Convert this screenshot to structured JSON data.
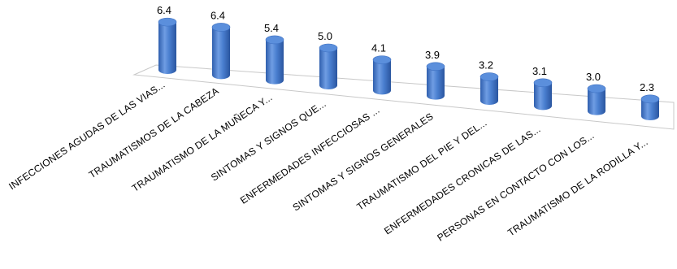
{
  "chart_data": {
    "type": "bar",
    "style": "3d-cylinder",
    "categories": [
      "INFECCIONES AGUDAS DE LAS VIAS...",
      "TRAUMATISMOS DE LA CABEZA",
      "TRAUMATISMO DE LA MUÑECA Y...",
      "SINTOMAS Y SIGNOS QUE...",
      "ENFERMEDADES INFECCIOSAS ...",
      "SINTOMAS Y SIGNOS GENERALES",
      "TRAUMATISMO DEL PIE Y DEL...",
      "ENFERMEDADES CRONICAS DE LAS...",
      "PERSONAS EN CONTACTO CON LOS...",
      "TRAUMATISMO DE LA RODILLA Y..."
    ],
    "values": [
      6.4,
      6.4,
      5.4,
      5.0,
      4.1,
      3.9,
      3.2,
      3.1,
      3.0,
      2.3
    ],
    "value_labels": [
      "6.4",
      "6.4",
      "5.4",
      "5.0",
      "4.1",
      "3.9",
      "3.2",
      "3.1",
      "3.0",
      "2.3"
    ],
    "title": "",
    "xlabel": "",
    "ylabel": "",
    "grid": false,
    "legend": "none",
    "colors": {
      "bar_light": "#7aa6e6",
      "bar_mid": "#4a7fd0",
      "bar_dark": "#2c5aa6",
      "bar_top": "#5b8fdc",
      "floor_line": "#c8c8c8"
    }
  }
}
